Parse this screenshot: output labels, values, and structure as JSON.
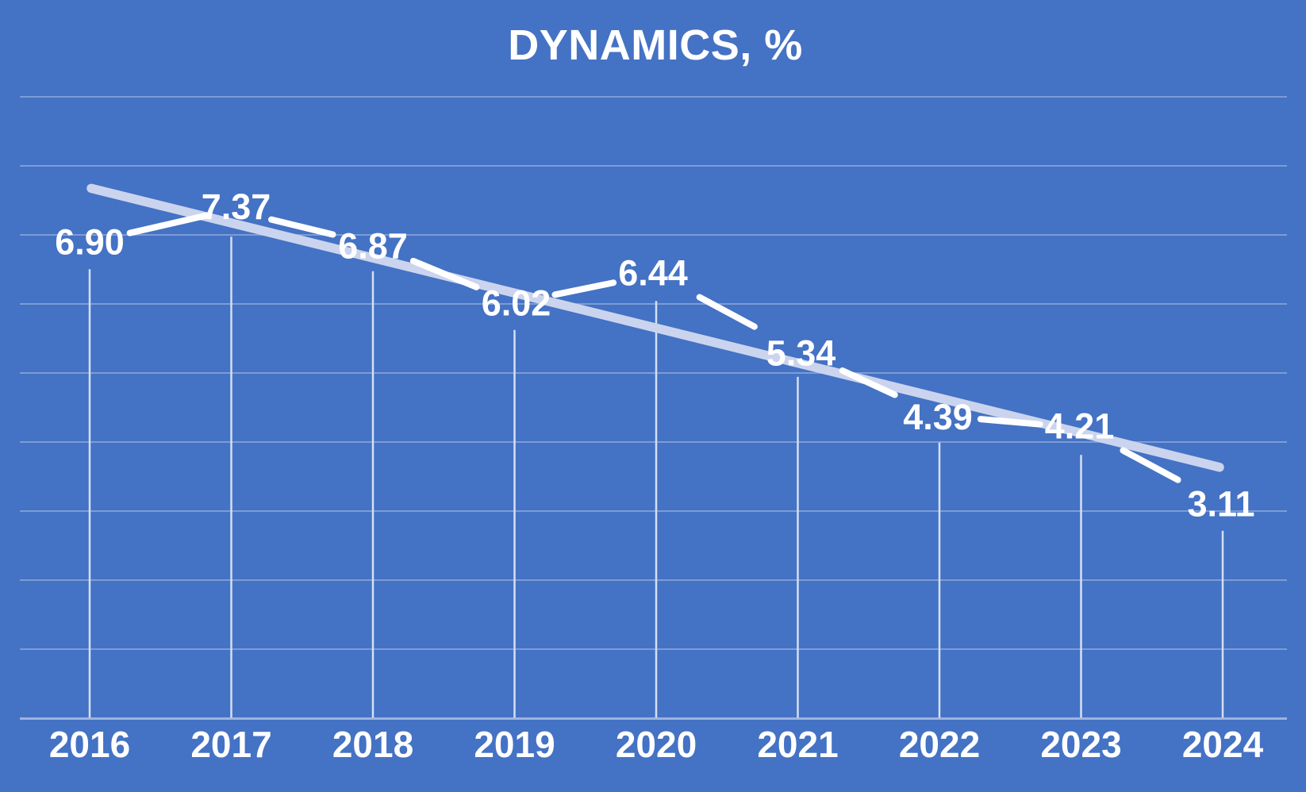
{
  "chart_data": {
    "type": "line",
    "title": "DYNAMICS, %",
    "categories": [
      "2016",
      "2017",
      "2018",
      "2019",
      "2020",
      "2021",
      "2022",
      "2023",
      "2024"
    ],
    "series": [
      {
        "name": "Dynamics",
        "values": [
          6.9,
          7.37,
          6.87,
          6.02,
          6.44,
          5.34,
          4.39,
          4.21,
          3.11
        ]
      }
    ],
    "data_labels": [
      "6.90",
      "7.37",
      "6.87",
      "6.02",
      "6.44",
      "5.34",
      "4.39",
      "4.21",
      "3.11"
    ],
    "trendline": {
      "type": "linear",
      "start_value": 7.68,
      "end_value": 3.64
    },
    "xlabel": "",
    "ylabel": "",
    "ylim": [
      0,
      9
    ],
    "gridlines": "horizontal",
    "gridline_values": [
      9,
      8,
      7,
      6,
      5,
      4,
      3,
      2,
      1
    ],
    "y_axis_labels_visible": false,
    "legend": "none",
    "drop_lines": true,
    "markers": "none"
  },
  "colors": {
    "background": "#4472C4",
    "series_line": "#FFFFFF",
    "trendline": "#CBD4EE",
    "gridline": "#7C9CD6",
    "axis_line": "#9DB3DF",
    "drop_line": "#D4DFF3",
    "text": "#FFFFFF"
  }
}
